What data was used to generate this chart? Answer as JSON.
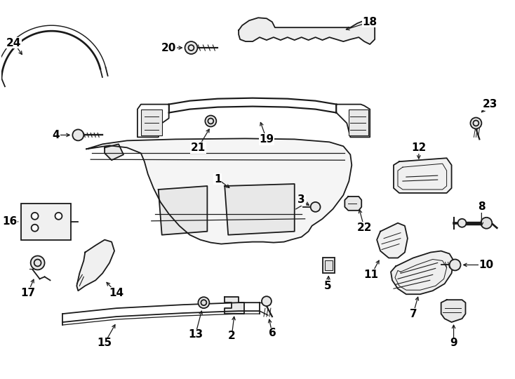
{
  "background_color": "#ffffff",
  "line_color": "#1a1a1a",
  "label_fontsize": 11,
  "lw": 1.3,
  "figsize": [
    7.34,
    5.4
  ],
  "dpi": 100
}
